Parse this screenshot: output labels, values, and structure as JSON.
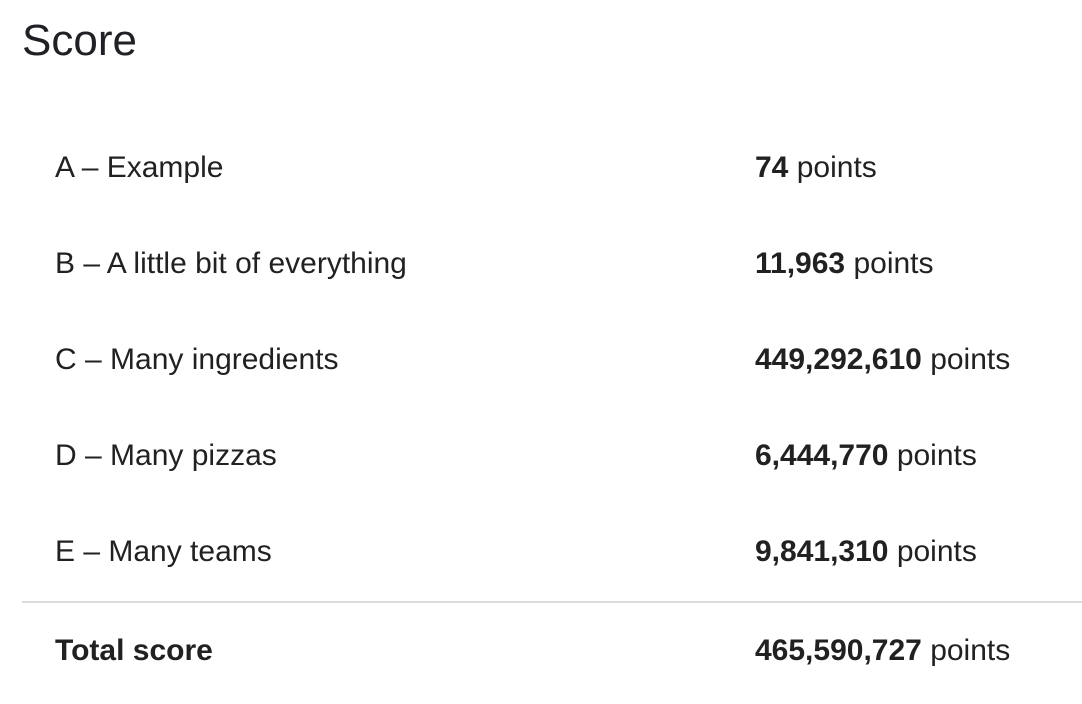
{
  "page": {
    "title": "Score"
  },
  "rows": [
    {
      "label": "A – Example",
      "score": "74",
      "unit": "points"
    },
    {
      "label": "B – A little bit of everything",
      "score": "11,963",
      "unit": "points"
    },
    {
      "label": "C – Many ingredients",
      "score": "449,292,610",
      "unit": "points"
    },
    {
      "label": "D – Many pizzas",
      "score": "6,444,770",
      "unit": "points"
    },
    {
      "label": "E – Many teams",
      "score": "9,841,310",
      "unit": "points"
    }
  ],
  "total": {
    "label": "Total score",
    "score": "465,590,727",
    "unit": "points"
  },
  "colors": {
    "text": "#212121",
    "divider": "#dadce0",
    "background": "#ffffff"
  }
}
